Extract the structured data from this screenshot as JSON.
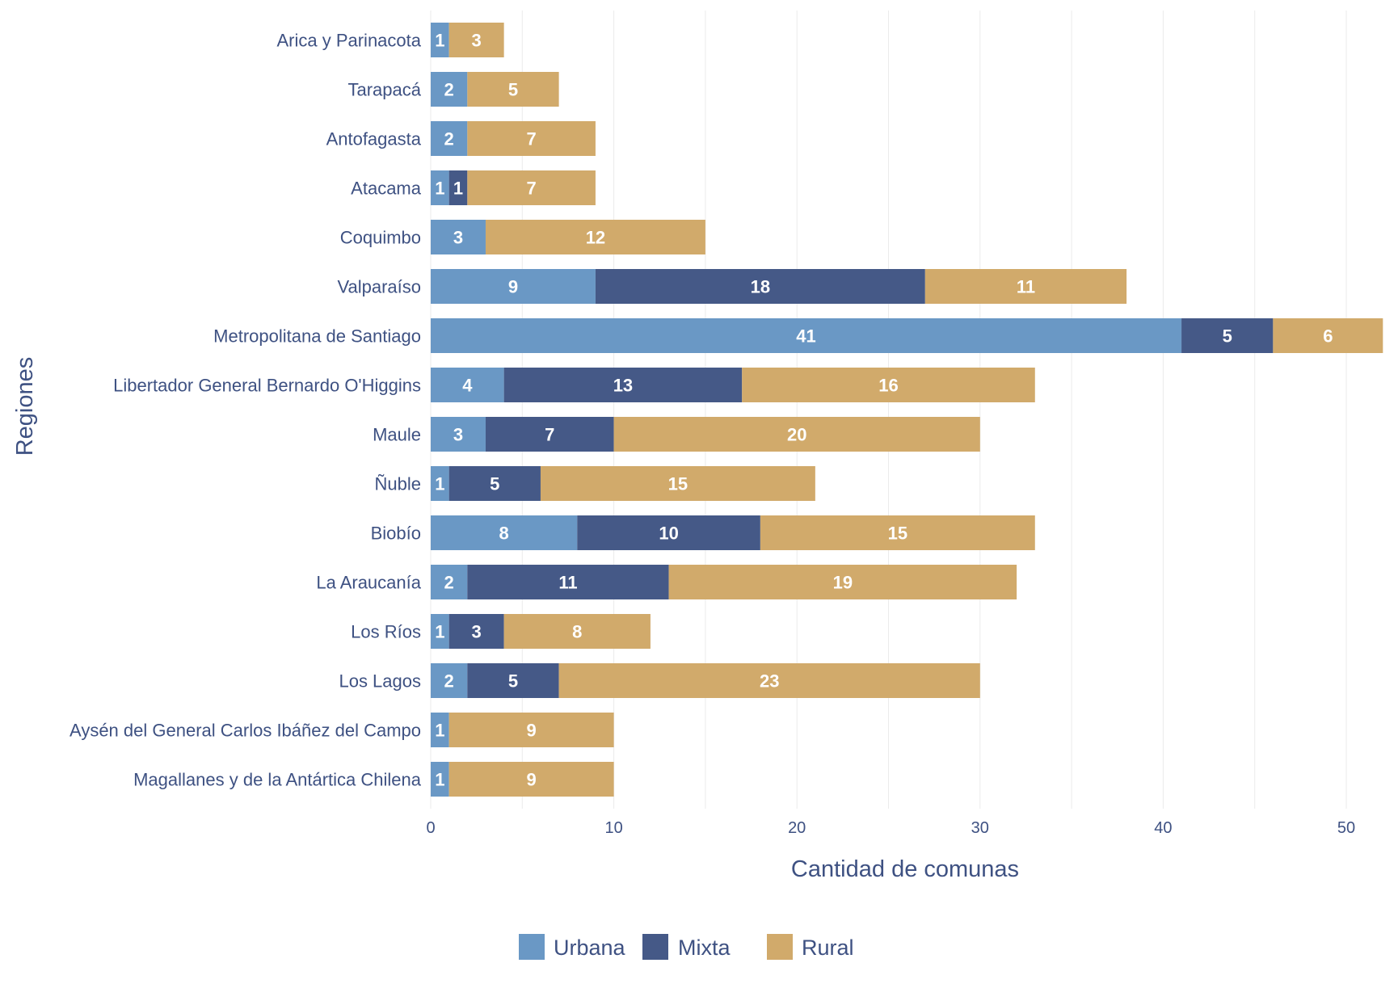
{
  "chart_data": {
    "type": "bar",
    "orientation": "horizontal",
    "stacked": true,
    "title": "",
    "xlabel": "Cantidad de comunas",
    "ylabel": "Regiones",
    "xlim": [
      0,
      52
    ],
    "xticks": [
      0,
      10,
      20,
      30,
      40,
      50
    ],
    "minor_gridlines": [
      5,
      15,
      25,
      35,
      45
    ],
    "grid": true,
    "legend_position": "bottom",
    "categories": [
      "Arica y Parinacota",
      "Tarapacá",
      "Antofagasta",
      "Atacama",
      "Coquimbo",
      "Valparaíso",
      "Metropolitana de Santiago",
      "Libertador General Bernardo O'Higgins",
      "Maule",
      "Ñuble",
      "Biobío",
      "La Araucanía",
      "Los Ríos",
      "Los Lagos",
      "Aysén del General Carlos Ibáñez del Campo",
      "Magallanes y de la Antártica Chilena"
    ],
    "series": [
      {
        "name": "Urbana",
        "color": "#6a98c5",
        "values": [
          1,
          2,
          2,
          1,
          3,
          9,
          41,
          4,
          3,
          1,
          8,
          2,
          1,
          2,
          1,
          1
        ]
      },
      {
        "name": "Mixta",
        "color": "#455987",
        "values": [
          0,
          0,
          0,
          1,
          0,
          18,
          5,
          13,
          7,
          5,
          10,
          11,
          3,
          5,
          0,
          0
        ]
      },
      {
        "name": "Rural",
        "color": "#d1aa6b",
        "values": [
          3,
          5,
          7,
          7,
          12,
          11,
          6,
          16,
          20,
          15,
          15,
          19,
          8,
          23,
          9,
          9
        ]
      }
    ]
  }
}
